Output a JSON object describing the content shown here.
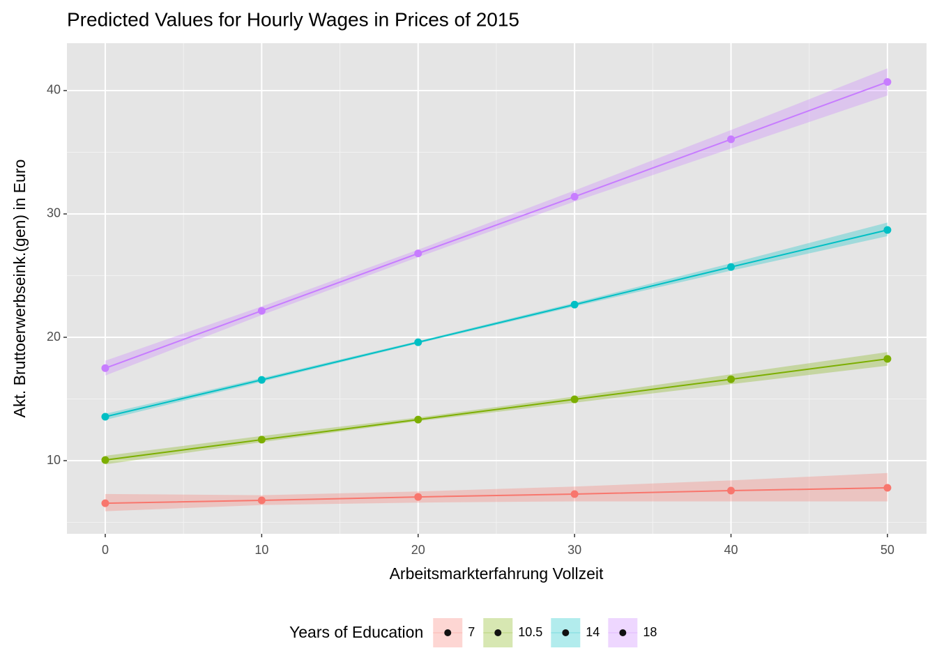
{
  "chart_data": {
    "type": "line",
    "title": "Predicted Values for Hourly Wages in Prices of 2015",
    "xlabel": "Arbeitsmarkterfahrung Vollzeit",
    "ylabel": "Akt. Bruttoerwerbseink.(gen) in Euro",
    "legend_title": "Years of Education",
    "legend": "bottom",
    "grid": true,
    "x": [
      0,
      10,
      20,
      30,
      40,
      50
    ],
    "xlim": [
      -2.45,
      52.5
    ],
    "xticks": [
      0,
      10,
      20,
      30,
      40,
      50
    ],
    "xminor": [
      5,
      15,
      25,
      35,
      45
    ],
    "ylim": [
      4.07,
      43.84
    ],
    "yticks": [
      10,
      20,
      30,
      40
    ],
    "yminor": [
      5,
      15,
      25,
      35
    ],
    "series": [
      {
        "name": "7",
        "color": "#F8766D",
        "values": [
          6.55,
          6.78,
          7.06,
          7.29,
          7.57,
          7.8
        ],
        "lower": [
          5.9,
          6.4,
          6.6,
          6.7,
          6.7,
          6.7
        ],
        "upper": [
          7.3,
          7.2,
          7.5,
          7.9,
          8.4,
          9.0
        ]
      },
      {
        "name": "10.5",
        "color": "#7CAE00",
        "values": [
          10.05,
          11.7,
          13.33,
          14.97,
          16.6,
          18.25
        ],
        "lower": [
          9.7,
          11.5,
          13.2,
          14.7,
          16.2,
          17.7
        ],
        "upper": [
          10.4,
          12.0,
          13.5,
          15.2,
          17.0,
          18.8
        ]
      },
      {
        "name": "14",
        "color": "#00BFC4",
        "values": [
          13.56,
          16.55,
          19.6,
          22.65,
          25.7,
          28.7
        ],
        "lower": [
          13.3,
          16.4,
          19.5,
          22.5,
          25.4,
          28.2
        ],
        "upper": [
          13.8,
          16.7,
          19.7,
          22.8,
          26.0,
          29.3
        ]
      },
      {
        "name": "18",
        "color": "#C77CFF",
        "values": [
          17.5,
          22.15,
          26.8,
          31.4,
          36.05,
          40.7
        ],
        "lower": [
          16.9,
          21.8,
          26.5,
          31.0,
          35.3,
          39.6
        ],
        "upper": [
          18.1,
          22.5,
          27.1,
          31.9,
          36.8,
          41.8
        ]
      }
    ]
  }
}
